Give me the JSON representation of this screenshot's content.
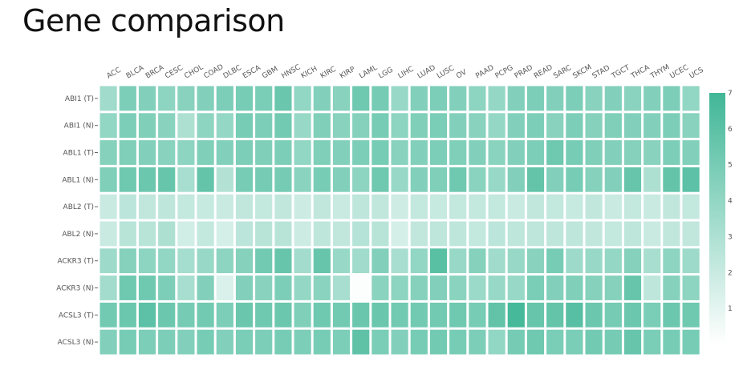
{
  "page": {
    "title": "Gene comparison"
  },
  "colors": {
    "low": "#ffffff",
    "high": "#41b797",
    "tick": "#666666",
    "label": "#555555"
  },
  "chart_data": {
    "type": "heatmap",
    "title": "",
    "xlabel": "",
    "ylabel": "",
    "x": [
      "ACC",
      "BLCA",
      "BRCA",
      "CESC",
      "CHOL",
      "COAD",
      "DLBC",
      "ESCA",
      "GBM",
      "HNSC",
      "KICH",
      "KIRC",
      "KIRP",
      "LAML",
      "LGG",
      "LIHC",
      "LUAD",
      "LUSC",
      "OV",
      "PAAD",
      "PCPG",
      "PRAD",
      "READ",
      "SARC",
      "SKCM",
      "STAD",
      "TGCT",
      "THCA",
      "THYM",
      "UCEC",
      "UCS"
    ],
    "y": [
      "ABI1 (T)",
      "ABI1 (N)",
      "ABL1 (T)",
      "ABL1 (N)",
      "ABL2 (T)",
      "ABL2 (N)",
      "ACKR3 (T)",
      "ACKR3 (N)",
      "ACSL3 (T)",
      "ACSL3 (N)"
    ],
    "z": [
      [
        3.5,
        4.8,
        4.6,
        4.2,
        4.4,
        4.6,
        4.8,
        5.0,
        4.9,
        5.5,
        4.0,
        4.6,
        4.4,
        5.3,
        5.1,
        3.8,
        4.6,
        4.8,
        4.6,
        4.2,
        3.9,
        4.6,
        4.8,
        4.6,
        4.8,
        4.4,
        4.6,
        4.3,
        4.6,
        4.8,
        4.0
      ],
      [
        4.0,
        4.8,
        4.7,
        4.4,
        3.0,
        4.2,
        3.9,
        5.0,
        4.8,
        5.2,
        3.8,
        4.7,
        4.4,
        4.5,
        5.0,
        4.2,
        4.7,
        4.9,
        4.6,
        4.4,
        3.9,
        4.6,
        4.8,
        4.4,
        4.8,
        4.5,
        4.7,
        4.6,
        4.6,
        4.8,
        4.4
      ],
      [
        4.5,
        4.7,
        4.6,
        4.4,
        4.2,
        4.7,
        4.6,
        4.8,
        4.7,
        4.8,
        4.0,
        4.7,
        4.6,
        4.8,
        5.0,
        4.4,
        4.6,
        4.8,
        4.7,
        4.6,
        4.3,
        4.6,
        4.8,
        5.3,
        5.0,
        4.7,
        4.6,
        4.5,
        4.4,
        4.8,
        4.6
      ],
      [
        4.7,
        5.3,
        5.4,
        5.6,
        3.2,
        5.7,
        2.8,
        5.0,
        5.1,
        5.1,
        4.3,
        5.0,
        4.6,
        4.2,
        5.3,
        3.8,
        4.6,
        4.7,
        5.3,
        4.3,
        3.8,
        4.6,
        5.7,
        4.6,
        5.0,
        4.5,
        4.6,
        5.6,
        3.0,
        5.7,
        6.0
      ],
      [
        2.0,
        2.5,
        2.3,
        2.4,
        2.2,
        2.1,
        2.0,
        2.3,
        2.2,
        2.3,
        1.9,
        2.3,
        2.0,
        2.4,
        2.3,
        1.8,
        2.2,
        2.1,
        2.2,
        2.2,
        2.2,
        2.0,
        2.3,
        2.2,
        2.1,
        2.3,
        2.0,
        2.2,
        2.0,
        2.3,
        2.2
      ],
      [
        2.0,
        2.6,
        2.6,
        3.0,
        1.7,
        2.2,
        1.6,
        2.5,
        2.6,
        2.6,
        1.9,
        2.4,
        2.3,
        2.7,
        2.6,
        1.6,
        2.3,
        2.4,
        2.4,
        2.2,
        2.5,
        2.4,
        2.4,
        2.4,
        2.4,
        2.3,
        2.2,
        2.4,
        2.0,
        2.3,
        2.3
      ],
      [
        3.6,
        4.5,
        4.2,
        4.0,
        3.3,
        3.8,
        4.2,
        4.5,
        5.2,
        5.6,
        3.4,
        5.6,
        3.8,
        3.5,
        4.6,
        3.2,
        4.0,
        6.1,
        3.8,
        4.5,
        3.5,
        3.8,
        4.4,
        5.0,
        3.6,
        3.8,
        3.9,
        4.5,
        3.2,
        4.2,
        3.6
      ],
      [
        3.4,
        5.3,
        5.3,
        4.8,
        3.2,
        4.6,
        1.4,
        4.6,
        4.4,
        4.8,
        3.9,
        4.3,
        3.2,
        0.1,
        4.3,
        4.2,
        4.5,
        4.6,
        4.3,
        3.7,
        3.8,
        3.8,
        4.9,
        4.6,
        4.7,
        4.5,
        4.5,
        5.6,
        2.4,
        4.5,
        4.2
      ],
      [
        5.2,
        5.4,
        6.0,
        5.4,
        5.1,
        5.2,
        4.8,
        5.5,
        5.3,
        5.4,
        4.7,
        5.3,
        5.2,
        5.5,
        5.5,
        5.2,
        5.2,
        5.2,
        5.3,
        5.0,
        5.8,
        6.8,
        5.6,
        5.7,
        6.2,
        5.4,
        5.1,
        5.4,
        4.9,
        5.4,
        5.3
      ],
      [
        4.6,
        5.0,
        4.8,
        4.8,
        4.6,
        5.0,
        4.6,
        4.9,
        4.8,
        5.0,
        4.8,
        5.0,
        4.8,
        5.9,
        4.9,
        4.6,
        5.0,
        5.2,
        5.0,
        4.8,
        4.0,
        5.1,
        5.3,
        4.9,
        4.9,
        5.2,
        5.1,
        5.6,
        4.9,
        5.0,
        5.0
      ]
    ],
    "zlim": [
      0,
      7
    ],
    "colorbar": {
      "ticks": [
        1,
        2,
        3,
        4,
        5,
        6,
        7
      ],
      "placement": "right"
    },
    "grid": false
  }
}
